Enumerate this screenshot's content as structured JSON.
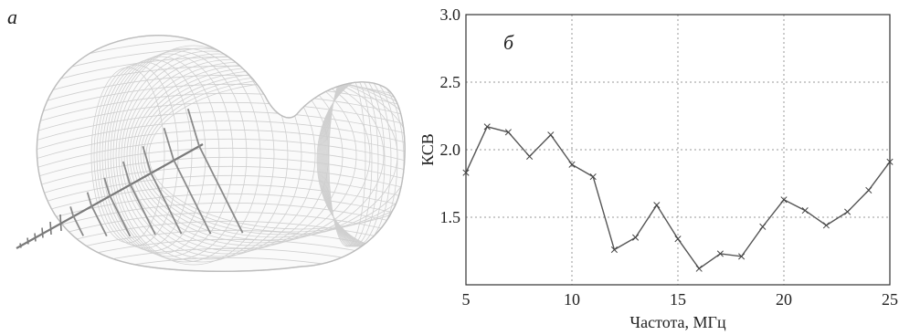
{
  "panels": {
    "left_label": "а",
    "right_label": "б"
  },
  "chart_data": {
    "type": "line",
    "xlabel": "Частота, МГц",
    "ylabel": "КСВ",
    "xlim": [
      5,
      25
    ],
    "ylim": [
      1.0,
      3.0
    ],
    "xticks": [
      5,
      10,
      15,
      20,
      25
    ],
    "yticks": [
      1.5,
      2.0,
      2.5,
      3.0
    ],
    "ytick_labels": [
      "1.5",
      "2.0",
      "2.5",
      "3.0"
    ],
    "grid": true,
    "grid_style": "dotted",
    "marker": "x",
    "line_color": "#555555",
    "series": [
      {
        "x": [
          5,
          6,
          7,
          8,
          9,
          10,
          11,
          12,
          13,
          14,
          15,
          16,
          17,
          18,
          19,
          20,
          21,
          22,
          23,
          24,
          25
        ],
        "y": [
          1.83,
          2.17,
          2.13,
          1.95,
          2.11,
          1.89,
          1.8,
          1.26,
          1.35,
          1.59,
          1.34,
          1.12,
          1.23,
          1.21,
          1.43,
          1.63,
          1.55,
          1.44,
          1.54,
          1.7,
          1.91
        ]
      }
    ]
  }
}
